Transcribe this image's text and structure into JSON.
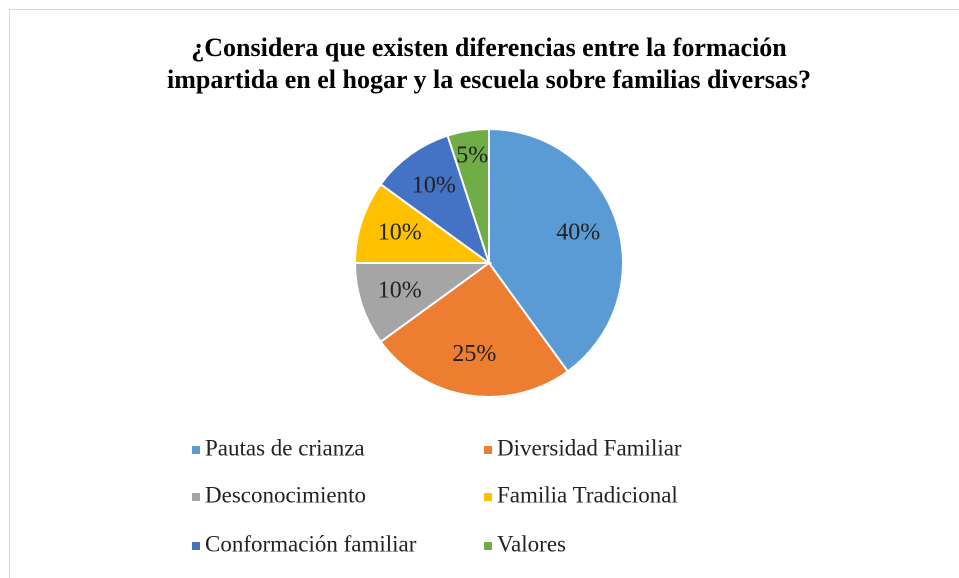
{
  "chart_data": {
    "type": "pie",
    "title": [
      "¿Considera que existen diferencias entre la formación",
      "impartida en el hogar y la escuela sobre familias diversas?"
    ],
    "categories": [
      "Pautas de crianza",
      "Diversidad Familiar",
      "Desconocimiento",
      "Familia Tradicional",
      "Conformación familiar",
      "Valores"
    ],
    "values": [
      40,
      25,
      10,
      10,
      10,
      5
    ],
    "value_labels": [
      "40%",
      "25%",
      "10%",
      "10%",
      "10%",
      "5%"
    ],
    "colors": [
      "#5b9bd5",
      "#ed7d31",
      "#a5a5a5",
      "#ffc000",
      "#4472c4",
      "#70ad47"
    ],
    "legend": "bottom"
  }
}
